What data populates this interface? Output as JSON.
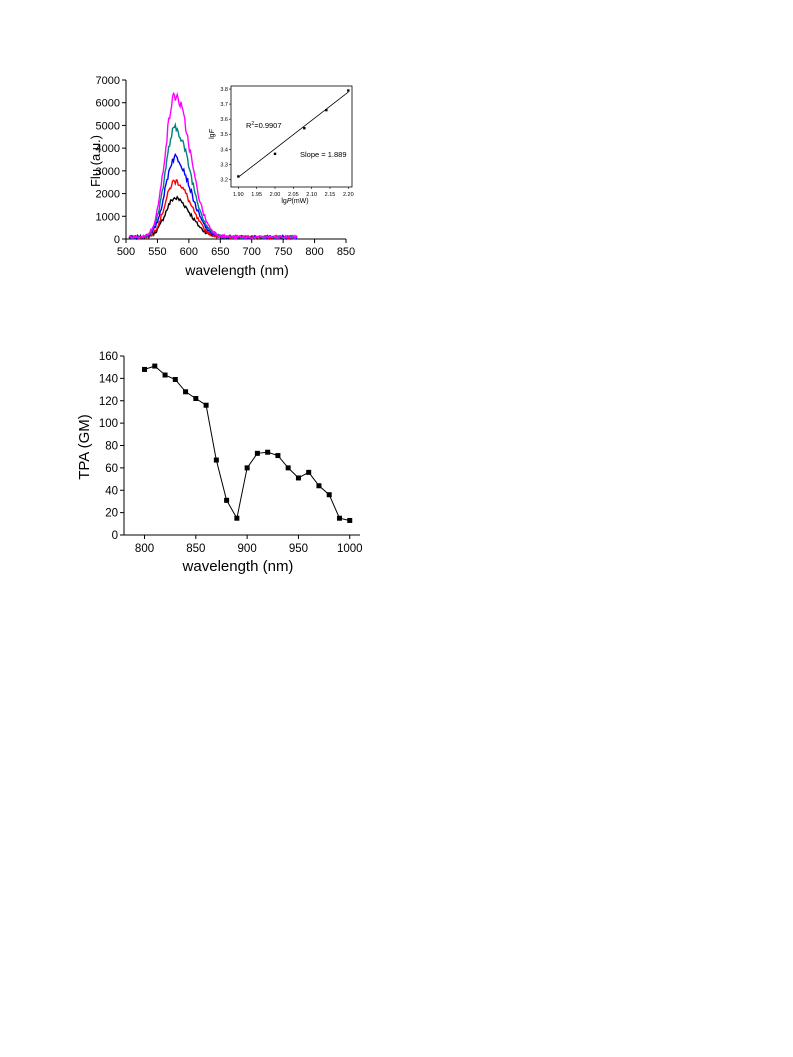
{
  "chart_data": [
    {
      "type": "line",
      "xlabel": "wavelength (nm)",
      "ylabel": "Flu (a.u.)",
      "xlim": [
        500,
        850
      ],
      "ylim": [
        0,
        7000
      ],
      "xticks": [
        500,
        550,
        600,
        650,
        700,
        750,
        800,
        850
      ],
      "yticks": [
        0,
        1000,
        2000,
        3000,
        4000,
        5000,
        6000,
        7000
      ],
      "x_range": [
        505,
        772
      ],
      "peak_x": 578,
      "baseline": 80,
      "series": [
        {
          "peak": 1800,
          "color": "#000000"
        },
        {
          "peak": 2550,
          "color": "#ff0000"
        },
        {
          "peak": 3600,
          "color": "#0000ff"
        },
        {
          "peak": 4850,
          "color": "#008080"
        },
        {
          "peak": 6300,
          "color": "#ff00ff"
        }
      ],
      "inset": {
        "type": "scatter",
        "xlabel_prefix": "lg",
        "xlabel_var": "P",
        "xlabel_unit": "(mW)",
        "ylabel_prefix": "lg",
        "ylabel_var": "F",
        "xlim": [
          1.88,
          2.21
        ],
        "ylim": [
          3.15,
          3.82
        ],
        "xticks": [
          1.9,
          1.95,
          2.0,
          2.05,
          2.1,
          2.15,
          2.2
        ],
        "yticks": [
          3.2,
          3.3,
          3.4,
          3.5,
          3.6,
          3.7,
          3.8
        ],
        "points": [
          [
            1.9,
            3.22
          ],
          [
            2.0,
            3.37
          ],
          [
            2.08,
            3.54
          ],
          [
            2.14,
            3.66
          ],
          [
            2.2,
            3.79
          ]
        ],
        "fit": {
          "x": [
            1.9,
            2.2
          ],
          "y": [
            3.215,
            3.78
          ]
        },
        "r2_label": "R",
        "r2_sup": "2",
        "r2_value": "=0.9907",
        "slope_text": "Slope = 1.889"
      }
    },
    {
      "type": "line",
      "xlabel": "wavelength (nm)",
      "ylabel": "TPA (GM)",
      "xlim": [
        780,
        1010
      ],
      "ylim": [
        0,
        160
      ],
      "xticks": [
        800,
        850,
        900,
        950,
        1000
      ],
      "yticks": [
        0,
        20,
        40,
        60,
        80,
        100,
        120,
        140,
        160
      ],
      "x": [
        800,
        810,
        820,
        830,
        840,
        850,
        860,
        870,
        880,
        890,
        900,
        910,
        920,
        930,
        940,
        950,
        960,
        970,
        980,
        990,
        1000
      ],
      "values": [
        148,
        151,
        143,
        139,
        128,
        122,
        116,
        67,
        31,
        15,
        60,
        73,
        74,
        71,
        60,
        51,
        56,
        44,
        36,
        15,
        13
      ]
    }
  ]
}
